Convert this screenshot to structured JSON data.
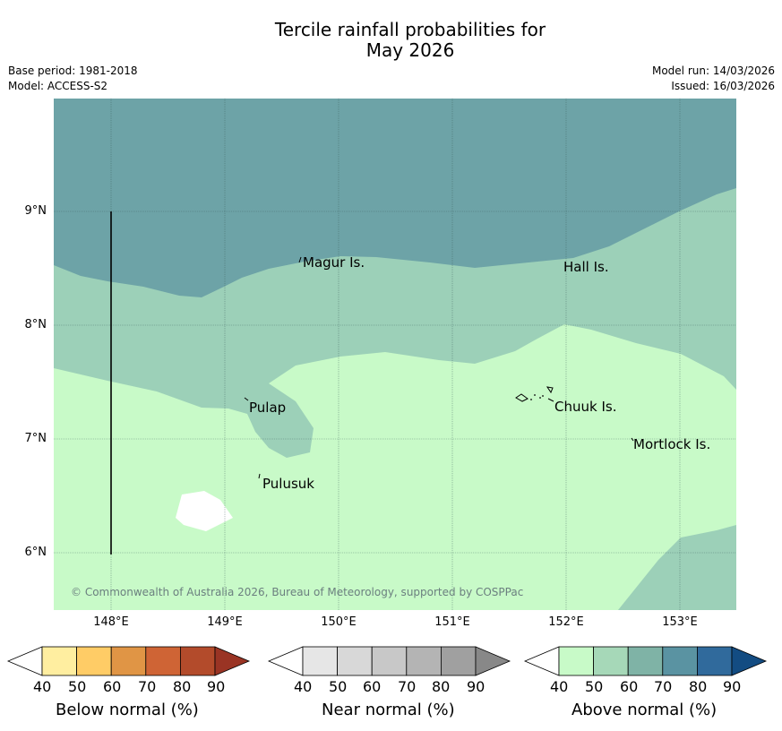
{
  "header": {
    "title_line1": "Tercile rainfall probabilities for",
    "title_line2": "May 2026",
    "base_period": "Base period: 1981-2018",
    "model": "Model: ACCESS-S2",
    "model_run": "Model run: 14/03/2026",
    "issued": "Issued: 16/03/2026"
  },
  "map": {
    "lat_ticks": [
      "9°N",
      "8°N",
      "7°N",
      "6°N"
    ],
    "lon_ticks": [
      "148°E",
      "149°E",
      "150°E",
      "151°E",
      "152°E",
      "153°E"
    ],
    "places": [
      "Magur Is.",
      "Hall Is.",
      "Pulap",
      "Chuuk Is.",
      "Mortlock Is.",
      "Pulusuk"
    ],
    "credit": "© Commonwealth of Australia 2026, Bureau of Meteorology, supported by COSPPac"
  },
  "colorbars": {
    "ticks": [
      "40",
      "50",
      "60",
      "70",
      "80",
      "90"
    ],
    "below": {
      "title": "Below normal (%)",
      "colors": [
        "#ffffff",
        "#ffeea0",
        "#ffcc66",
        "#e09545",
        "#cf6435",
        "#b34b2b",
        "#9a3424"
      ]
    },
    "near": {
      "title": "Near normal (%)",
      "colors": [
        "#ffffff",
        "#e6e6e6",
        "#d8d8d8",
        "#c8c8c8",
        "#b4b4b4",
        "#a0a0a0",
        "#888888"
      ]
    },
    "above": {
      "title": "Above normal (%)",
      "colors": [
        "#ffffff",
        "#c8fac8",
        "#a6d8b8",
        "#7fb3a6",
        "#5a93a2",
        "#306a9c",
        "#134c82"
      ]
    }
  },
  "colors": {
    "above_40_50": "#c8fac8",
    "above_50_60": "#9cd0b8",
    "above_60_70": "#6da3a7"
  }
}
